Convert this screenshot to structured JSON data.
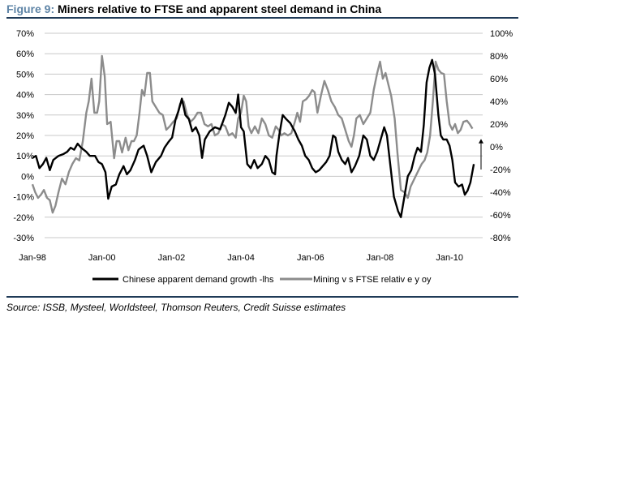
{
  "figure": {
    "label": "Figure 9:",
    "title": "Miners relative to FTSE and apparent steel demand in China",
    "source": "Source: ISSB, Mysteel, Worldsteel, Thomson Reuters, Credit Suisse estimates"
  },
  "colors": {
    "rule": "#1f3a57",
    "label": "#5e84a6",
    "series1": "#000000",
    "series2": "#8c8c8c",
    "grid": "#c8c8c8"
  },
  "chart_data": {
    "type": "line",
    "legend_position": "bottom",
    "grid": true,
    "x_range": [
      1998.0,
      2011.0
    ],
    "x_ticks": [
      {
        "label": "Jan-98",
        "x": 1998.0
      },
      {
        "label": "Jan-00",
        "x": 2000.0
      },
      {
        "label": "Jan-02",
        "x": 2002.0
      },
      {
        "label": "Jan-04",
        "x": 2004.0
      },
      {
        "label": "Jan-06",
        "x": 2006.0
      },
      {
        "label": "Jan-08",
        "x": 2008.0
      },
      {
        "label": "Jan-10",
        "x": 2010.0
      }
    ],
    "left_axis": {
      "ylim": [
        -30,
        70
      ],
      "ticks": [
        {
          "v": 70,
          "label": "70%"
        },
        {
          "v": 60,
          "label": "60%"
        },
        {
          "v": 50,
          "label": "50%"
        },
        {
          "v": 40,
          "label": "40%"
        },
        {
          "v": 30,
          "label": "30%"
        },
        {
          "v": 20,
          "label": "20%"
        },
        {
          "v": 10,
          "label": "10%"
        },
        {
          "v": 0,
          "label": "0%"
        },
        {
          "v": -10,
          "label": "-10%"
        },
        {
          "v": -20,
          "label": "-20%"
        },
        {
          "v": -30,
          "label": "-30%"
        }
      ]
    },
    "right_axis": {
      "ylim": [
        -80,
        100
      ],
      "ticks": [
        {
          "v": 100,
          "label": "100%"
        },
        {
          "v": 80,
          "label": "80%"
        },
        {
          "v": 60,
          "label": "60%"
        },
        {
          "v": 40,
          "label": "40%"
        },
        {
          "v": 20,
          "label": "20%"
        },
        {
          "v": 0,
          "label": "0%"
        },
        {
          "v": -20,
          "label": "-20%"
        },
        {
          "v": -40,
          "label": "-40%"
        },
        {
          "v": -60,
          "label": "-60%"
        },
        {
          "v": -80,
          "label": "-80%"
        }
      ]
    },
    "series": [
      {
        "name": "Chinese apparent demand growth -lhs",
        "axis": "left",
        "color": "#000000",
        "points": [
          [
            1998.0,
            9
          ],
          [
            1998.1,
            10
          ],
          [
            1998.2,
            4
          ],
          [
            1998.3,
            6
          ],
          [
            1998.4,
            9
          ],
          [
            1998.5,
            3
          ],
          [
            1998.6,
            8
          ],
          [
            1998.75,
            10
          ],
          [
            1998.9,
            11
          ],
          [
            1999.0,
            12
          ],
          [
            1999.1,
            14
          ],
          [
            1999.2,
            13
          ],
          [
            1999.3,
            16
          ],
          [
            1999.4,
            14
          ],
          [
            1999.55,
            12
          ],
          [
            1999.65,
            10
          ],
          [
            1999.8,
            10
          ],
          [
            1999.9,
            7
          ],
          [
            2000.0,
            6
          ],
          [
            2000.1,
            2
          ],
          [
            2000.18,
            -11
          ],
          [
            2000.28,
            -5
          ],
          [
            2000.4,
            -4
          ],
          [
            2000.5,
            1
          ],
          [
            2000.62,
            5
          ],
          [
            2000.72,
            1
          ],
          [
            2000.82,
            3
          ],
          [
            2000.95,
            8
          ],
          [
            2001.05,
            13
          ],
          [
            2001.12,
            14
          ],
          [
            2001.2,
            15
          ],
          [
            2001.3,
            10
          ],
          [
            2001.42,
            2
          ],
          [
            2001.55,
            7
          ],
          [
            2001.7,
            10
          ],
          [
            2001.8,
            14
          ],
          [
            2001.92,
            17
          ],
          [
            2002.02,
            19
          ],
          [
            2002.12,
            28
          ],
          [
            2002.2,
            32
          ],
          [
            2002.3,
            38
          ],
          [
            2002.4,
            30
          ],
          [
            2002.5,
            28
          ],
          [
            2002.6,
            22
          ],
          [
            2002.7,
            24
          ],
          [
            2002.8,
            20
          ],
          [
            2002.88,
            9
          ],
          [
            2002.96,
            18
          ],
          [
            2003.1,
            22
          ],
          [
            2003.25,
            24
          ],
          [
            2003.4,
            23
          ],
          [
            2003.55,
            30
          ],
          [
            2003.65,
            36
          ],
          [
            2003.75,
            34
          ],
          [
            2003.85,
            31
          ],
          [
            2003.92,
            40
          ],
          [
            2004.0,
            24
          ],
          [
            2004.08,
            22
          ],
          [
            2004.18,
            6
          ],
          [
            2004.28,
            4
          ],
          [
            2004.38,
            8
          ],
          [
            2004.48,
            4
          ],
          [
            2004.6,
            6
          ],
          [
            2004.7,
            10
          ],
          [
            2004.8,
            8
          ],
          [
            2004.9,
            2
          ],
          [
            2004.98,
            1
          ],
          [
            2005.02,
            10
          ],
          [
            2005.1,
            20
          ],
          [
            2005.2,
            30
          ],
          [
            2005.3,
            28
          ],
          [
            2005.42,
            26
          ],
          [
            2005.55,
            22
          ],
          [
            2005.65,
            18
          ],
          [
            2005.75,
            15
          ],
          [
            2005.85,
            10
          ],
          [
            2005.95,
            8
          ],
          [
            2006.05,
            4
          ],
          [
            2006.15,
            2
          ],
          [
            2006.25,
            3
          ],
          [
            2006.35,
            5
          ],
          [
            2006.45,
            7
          ],
          [
            2006.55,
            10
          ],
          [
            2006.65,
            20
          ],
          [
            2006.72,
            19
          ],
          [
            2006.8,
            12
          ],
          [
            2006.9,
            8
          ],
          [
            2007.0,
            6
          ],
          [
            2007.08,
            9
          ],
          [
            2007.18,
            2
          ],
          [
            2007.28,
            5
          ],
          [
            2007.4,
            10
          ],
          [
            2007.52,
            20
          ],
          [
            2007.62,
            18
          ],
          [
            2007.72,
            10
          ],
          [
            2007.82,
            8
          ],
          [
            2007.92,
            12
          ],
          [
            2008.02,
            18
          ],
          [
            2008.12,
            24
          ],
          [
            2008.2,
            20
          ],
          [
            2008.3,
            5
          ],
          [
            2008.4,
            -10
          ],
          [
            2008.52,
            -17
          ],
          [
            2008.6,
            -20
          ],
          [
            2008.7,
            -10
          ],
          [
            2008.8,
            0
          ],
          [
            2008.9,
            3
          ],
          [
            2009.0,
            10
          ],
          [
            2009.08,
            14
          ],
          [
            2009.18,
            12
          ],
          [
            2009.26,
            25
          ],
          [
            2009.34,
            46
          ],
          [
            2009.42,
            53
          ],
          [
            2009.5,
            57
          ],
          [
            2009.58,
            50
          ],
          [
            2009.68,
            30
          ],
          [
            2009.75,
            20
          ],
          [
            2009.82,
            18
          ],
          [
            2009.92,
            18
          ],
          [
            2010.0,
            15
          ],
          [
            2010.08,
            8
          ],
          [
            2010.16,
            -3
          ],
          [
            2010.26,
            -5
          ],
          [
            2010.36,
            -4
          ],
          [
            2010.44,
            -9
          ],
          [
            2010.52,
            -7
          ],
          [
            2010.6,
            -3
          ],
          [
            2010.7,
            6
          ]
        ]
      },
      {
        "name": "Mining v s FTSE relativ e y oy",
        "axis": "right",
        "color": "#8c8c8c",
        "points": [
          [
            1998.0,
            -33
          ],
          [
            1998.08,
            -40
          ],
          [
            1998.16,
            -45
          ],
          [
            1998.25,
            -42
          ],
          [
            1998.33,
            -38
          ],
          [
            1998.42,
            -45
          ],
          [
            1998.5,
            -47
          ],
          [
            1998.58,
            -58
          ],
          [
            1998.66,
            -52
          ],
          [
            1998.75,
            -40
          ],
          [
            1998.85,
            -28
          ],
          [
            1998.95,
            -33
          ],
          [
            1999.05,
            -22
          ],
          [
            1999.15,
            -15
          ],
          [
            1999.25,
            -10
          ],
          [
            1999.35,
            -12
          ],
          [
            1999.45,
            5
          ],
          [
            1999.55,
            30
          ],
          [
            1999.62,
            40
          ],
          [
            1999.7,
            60
          ],
          [
            1999.78,
            30
          ],
          [
            1999.86,
            30
          ],
          [
            1999.92,
            40
          ],
          [
            2000.0,
            80
          ],
          [
            2000.08,
            62
          ],
          [
            2000.15,
            20
          ],
          [
            2000.25,
            22
          ],
          [
            2000.35,
            -10
          ],
          [
            2000.42,
            5
          ],
          [
            2000.5,
            5
          ],
          [
            2000.58,
            -5
          ],
          [
            2000.68,
            8
          ],
          [
            2000.76,
            -3
          ],
          [
            2000.85,
            5
          ],
          [
            2000.92,
            5
          ],
          [
            2001.0,
            10
          ],
          [
            2001.08,
            30
          ],
          [
            2001.15,
            50
          ],
          [
            2001.22,
            45
          ],
          [
            2001.3,
            65
          ],
          [
            2001.38,
            65
          ],
          [
            2001.45,
            40
          ],
          [
            2001.55,
            35
          ],
          [
            2001.65,
            30
          ],
          [
            2001.75,
            28
          ],
          [
            2001.85,
            15
          ],
          [
            2001.95,
            18
          ],
          [
            2002.05,
            22
          ],
          [
            2002.15,
            25
          ],
          [
            2002.25,
            38
          ],
          [
            2002.35,
            40
          ],
          [
            2002.45,
            28
          ],
          [
            2002.55,
            22
          ],
          [
            2002.65,
            25
          ],
          [
            2002.75,
            30
          ],
          [
            2002.85,
            30
          ],
          [
            2002.95,
            20
          ],
          [
            2003.05,
            18
          ],
          [
            2003.15,
            20
          ],
          [
            2003.25,
            10
          ],
          [
            2003.35,
            12
          ],
          [
            2003.45,
            20
          ],
          [
            2003.55,
            18
          ],
          [
            2003.65,
            10
          ],
          [
            2003.75,
            12
          ],
          [
            2003.85,
            8
          ],
          [
            2003.92,
            25
          ],
          [
            2004.0,
            30
          ],
          [
            2004.08,
            45
          ],
          [
            2004.15,
            40
          ],
          [
            2004.22,
            18
          ],
          [
            2004.3,
            12
          ],
          [
            2004.4,
            18
          ],
          [
            2004.5,
            12
          ],
          [
            2004.6,
            25
          ],
          [
            2004.7,
            20
          ],
          [
            2004.8,
            10
          ],
          [
            2004.9,
            8
          ],
          [
            2005.0,
            18
          ],
          [
            2005.08,
            15
          ],
          [
            2005.16,
            10
          ],
          [
            2005.25,
            12
          ],
          [
            2005.35,
            10
          ],
          [
            2005.45,
            12
          ],
          [
            2005.55,
            22
          ],
          [
            2005.62,
            30
          ],
          [
            2005.7,
            22
          ],
          [
            2005.78,
            40
          ],
          [
            2005.88,
            42
          ],
          [
            2005.96,
            45
          ],
          [
            2006.05,
            50
          ],
          [
            2006.12,
            48
          ],
          [
            2006.2,
            30
          ],
          [
            2006.3,
            45
          ],
          [
            2006.4,
            58
          ],
          [
            2006.5,
            50
          ],
          [
            2006.6,
            40
          ],
          [
            2006.7,
            35
          ],
          [
            2006.8,
            28
          ],
          [
            2006.9,
            25
          ],
          [
            2007.0,
            15
          ],
          [
            2007.1,
            5
          ],
          [
            2007.18,
            0
          ],
          [
            2007.25,
            10
          ],
          [
            2007.32,
            25
          ],
          [
            2007.42,
            28
          ],
          [
            2007.52,
            20
          ],
          [
            2007.62,
            25
          ],
          [
            2007.72,
            30
          ],
          [
            2007.82,
            50
          ],
          [
            2007.92,
            65
          ],
          [
            2008.0,
            75
          ],
          [
            2008.08,
            60
          ],
          [
            2008.16,
            65
          ],
          [
            2008.24,
            55
          ],
          [
            2008.32,
            45
          ],
          [
            2008.42,
            25
          ],
          [
            2008.5,
            -5
          ],
          [
            2008.6,
            -38
          ],
          [
            2008.7,
            -40
          ],
          [
            2008.8,
            -45
          ],
          [
            2008.88,
            -35
          ],
          [
            2008.96,
            -30
          ],
          [
            2009.04,
            -25
          ],
          [
            2009.12,
            -20
          ],
          [
            2009.2,
            -15
          ],
          [
            2009.28,
            -12
          ],
          [
            2009.36,
            -5
          ],
          [
            2009.44,
            10
          ],
          [
            2009.52,
            40
          ],
          [
            2009.6,
            75
          ],
          [
            2009.68,
            68
          ],
          [
            2009.76,
            65
          ],
          [
            2009.84,
            64
          ],
          [
            2009.92,
            40
          ],
          [
            2010.0,
            20
          ],
          [
            2010.08,
            15
          ],
          [
            2010.16,
            20
          ],
          [
            2010.24,
            12
          ],
          [
            2010.32,
            15
          ],
          [
            2010.4,
            22
          ],
          [
            2010.5,
            23
          ],
          [
            2010.58,
            20
          ],
          [
            2010.66,
            16
          ]
        ]
      }
    ]
  }
}
